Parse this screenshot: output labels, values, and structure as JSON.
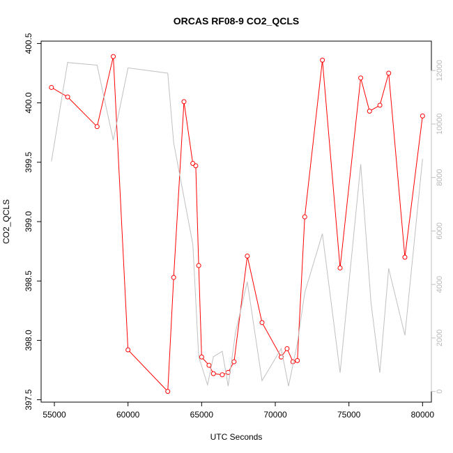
{
  "chart_data": {
    "type": "line",
    "title": "ORCAS RF08-9 CO2_QCLS",
    "xlabel": "UTC Seconds",
    "ylabel": "CO2_QCLS",
    "xlim": [
      54100,
      80600
    ],
    "ylim": [
      397.48,
      400.52
    ],
    "y2lim": [
      -400,
      13100
    ],
    "x_ticks": [
      55000,
      60000,
      65000,
      70000,
      75000,
      80000
    ],
    "y_ticks": [
      397.5,
      398.0,
      398.5,
      399.0,
      399.5,
      400.0,
      400.5
    ],
    "y_tick_labels": [
      "397.5",
      "398.0",
      "398.5",
      "399.0",
      "399.5",
      "400.0",
      "400.5"
    ],
    "y2_ticks": [
      0,
      2000,
      4000,
      6000,
      8000,
      10000,
      12000
    ],
    "grid": false,
    "legend": "none",
    "series": [
      {
        "axis": "left",
        "color": "#ff0000",
        "marker": "open-circle",
        "x": [
          54800,
          55900,
          57900,
          59000,
          60000,
          62700,
          63100,
          63800,
          64400,
          64600,
          64800,
          65000,
          65500,
          65800,
          66400,
          66800,
          67200,
          68100,
          69100,
          70400,
          70800,
          71200,
          71500,
          72000,
          73200,
          74400,
          75800,
          76400,
          77100,
          77700,
          78800,
          80000
        ],
        "y": [
          400.13,
          400.05,
          399.8,
          400.39,
          397.92,
          397.57,
          398.53,
          400.01,
          399.49,
          399.47,
          398.63,
          397.86,
          397.79,
          397.72,
          397.71,
          397.73,
          397.82,
          398.71,
          398.15,
          397.86,
          397.93,
          397.82,
          397.83,
          399.04,
          400.36,
          398.61,
          400.21,
          399.93,
          399.98,
          400.25,
          398.7,
          399.89
        ]
      },
      {
        "axis": "right",
        "color": "#c0c0c0",
        "marker": "none",
        "x": [
          54800,
          55900,
          57900,
          59000,
          60000,
          62700,
          63100,
          64400,
          64800,
          65400,
          65800,
          66400,
          66800,
          67300,
          68100,
          69100,
          70400,
          70900,
          71500,
          72000,
          73200,
          74400,
          75800,
          76500,
          77100,
          77700,
          78800,
          80000
        ],
        "y": [
          8600,
          12300,
          12200,
          9400,
          12100,
          11900,
          9300,
          5500,
          1300,
          250,
          1300,
          1500,
          200,
          2200,
          4100,
          400,
          1600,
          200,
          1800,
          3700,
          5900,
          700,
          8500,
          3300,
          700,
          4600,
          2100,
          8700
        ]
      }
    ]
  }
}
